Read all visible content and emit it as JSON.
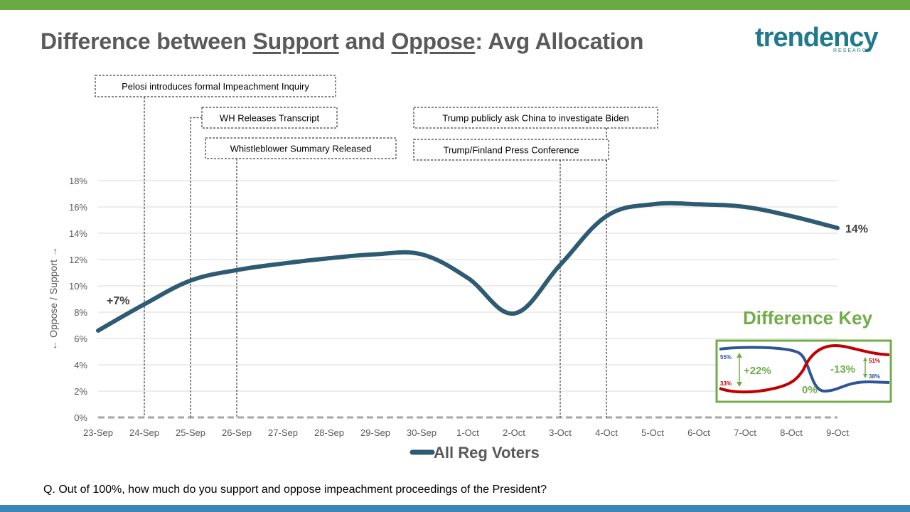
{
  "colors": {
    "top_bar": "#6aaa43",
    "bottom_bar": "#3a87b7",
    "line": "#2e5b73",
    "title": "#5a5a5a",
    "key_border": "#70ad47",
    "key_title": "#70ad47",
    "support_line": "#2f5597",
    "oppose_line": "#c00000",
    "logo": "#1f7a8c"
  },
  "title": {
    "prefix": "Difference between ",
    "support": "Support",
    "mid": " and ",
    "oppose": "Oppose",
    "suffix": ": Avg Allocation"
  },
  "logo": {
    "word": "trendency",
    "sub": "RESEARCH"
  },
  "question": "Q. Out of 100%, how much do you support and oppose impeachment proceedings of the President?",
  "events": [
    {
      "label": "Pelosi introduces formal Impeachment Inquiry",
      "date": "24-Sep"
    },
    {
      "label": "WH Releases Transcript",
      "date": "25-Sep"
    },
    {
      "label": "Whistleblower Summary  Released",
      "date": "26-Sep"
    },
    {
      "label": "Trump  publicly ask China to investigate Biden",
      "date": "4-Oct"
    },
    {
      "label": "Trump/Finland  Press Conference",
      "date": "3-Oct"
    }
  ],
  "difference_key": {
    "title": "Difference Key",
    "left_top": "55%",
    "left_bottom": "33%",
    "left_diff": "+22%",
    "cross": "0%",
    "right_diff": "-13%",
    "right_top": "51%",
    "right_bottom": "38%"
  },
  "chart_data": {
    "type": "line",
    "categories": [
      "23-Sep",
      "24-Sep",
      "25-Sep",
      "26-Sep",
      "27-Sep",
      "28-Sep",
      "29-Sep",
      "30-Sep",
      "1-Oct",
      "2-Oct",
      "3-Oct",
      "4-Oct",
      "5-Oct",
      "6-Oct",
      "7-Oct",
      "8-Oct",
      "9-Oct"
    ],
    "series": [
      {
        "name": "All Reg Voters",
        "values": [
          6.6,
          8.6,
          10.4,
          11.2,
          11.7,
          12.1,
          12.4,
          12.4,
          10.6,
          7.9,
          11.6,
          15.3,
          16.2,
          16.2,
          16.0,
          15.3,
          14.4
        ]
      }
    ],
    "ylabel": "← Oppose / Support →",
    "ylim": [
      0,
      18
    ],
    "yticks": [
      "0%",
      "2%",
      "4%",
      "6%",
      "8%",
      "10%",
      "12%",
      "14%",
      "16%",
      "18%"
    ],
    "start_label": "+7%",
    "end_label": "14%",
    "grid": true,
    "legend": "bottom"
  }
}
